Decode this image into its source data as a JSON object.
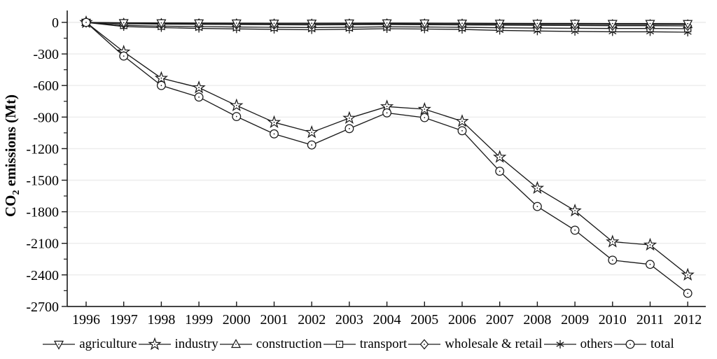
{
  "colors": {
    "line": "#1a1a1a",
    "grid": "#ececec",
    "background": "#ffffff",
    "text": "#000000"
  },
  "chart_data": {
    "type": "line",
    "title": "",
    "xlabel": "",
    "ylabel": {
      "pre": "CO",
      "sub": "2",
      "post": " emissions (Mt)"
    },
    "x": [
      1996,
      1997,
      1998,
      1999,
      2000,
      2001,
      2002,
      2003,
      2004,
      2005,
      2006,
      2007,
      2008,
      2009,
      2010,
      2011,
      2012
    ],
    "yticks": [
      0,
      -300,
      -600,
      -900,
      -1200,
      -1500,
      -1800,
      -2100,
      -2400,
      -2700
    ],
    "ylim": [
      -2700,
      100
    ],
    "grid": "horizontal-major",
    "legend_position": "bottom",
    "series": [
      {
        "name": "agriculture",
        "marker": "triangle-down",
        "values": [
          0,
          -3,
          -5,
          -6,
          -7,
          -8,
          -8,
          -7,
          -6,
          -7,
          -8,
          -9,
          -10,
          -10,
          -11,
          -11,
          -12
        ]
      },
      {
        "name": "industry",
        "marker": "star",
        "values": [
          0,
          -280,
          -530,
          -620,
          -790,
          -950,
          -1045,
          -910,
          -800,
          -825,
          -940,
          -1280,
          -1575,
          -1790,
          -2085,
          -2115,
          -2400
        ]
      },
      {
        "name": "construction",
        "marker": "triangle-up",
        "values": [
          0,
          -6,
          -9,
          -11,
          -12,
          -13,
          -14,
          -13,
          -12,
          -13,
          -14,
          -16,
          -17,
          -18,
          -19,
          -19,
          -20
        ]
      },
      {
        "name": "transport",
        "marker": "square",
        "values": [
          0,
          -28,
          -36,
          -40,
          -44,
          -47,
          -49,
          -46,
          -42,
          -44,
          -47,
          -51,
          -54,
          -56,
          -58,
          -58,
          -60
        ]
      },
      {
        "name": "wholesale & retail",
        "marker": "diamond",
        "values": [
          0,
          -12,
          -16,
          -18,
          -20,
          -22,
          -24,
          -22,
          -20,
          -22,
          -24,
          -26,
          -28,
          -29,
          -31,
          -31,
          -33
        ]
      },
      {
        "name": "others",
        "marker": "asterisk",
        "values": [
          0,
          -40,
          -50,
          -57,
          -62,
          -66,
          -70,
          -65,
          -60,
          -63,
          -67,
          -76,
          -82,
          -86,
          -89,
          -89,
          -93
        ]
      },
      {
        "name": "total",
        "marker": "circle-dot",
        "values": [
          0,
          -320,
          -600,
          -710,
          -895,
          -1060,
          -1165,
          -1010,
          -860,
          -905,
          -1030,
          -1415,
          -1750,
          -1975,
          -2260,
          -2300,
          -2575
        ]
      }
    ]
  }
}
